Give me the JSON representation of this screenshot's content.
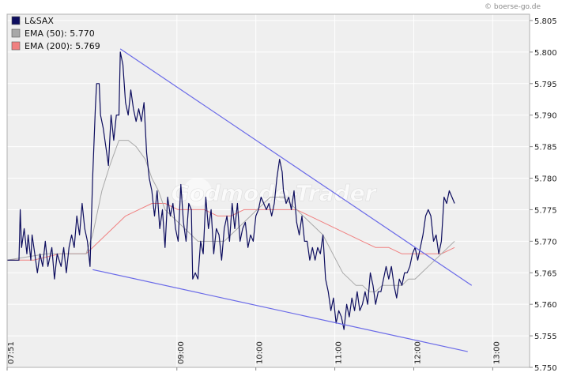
{
  "chart_data": {
    "type": "line",
    "source_label": "© boerse-go.de",
    "watermark": "Godmode-Trader",
    "legend": [
      {
        "name": "L&SAX",
        "color": "#0d0d5e"
      },
      {
        "name": "EMA (50): 5.770",
        "color": "#a8a8a8"
      },
      {
        "name": "EMA (200): 5.769",
        "color": "#f08080"
      }
    ],
    "xticks": [
      {
        "t": 0,
        "label": "07:51"
      },
      {
        "t": 129,
        "label": "09:00"
      },
      {
        "t": 189,
        "label": "10:00"
      },
      {
        "t": 249,
        "label": "11:00"
      },
      {
        "t": 309,
        "label": "12:00"
      },
      {
        "t": 369,
        "label": "13:00"
      }
    ],
    "yticks": [
      "5.805",
      "5.800",
      "5.795",
      "5.790",
      "5.785",
      "5.780",
      "5.775",
      "5.770",
      "5.765",
      "5.760",
      "5.755",
      "5.750"
    ],
    "ylim": [
      5.75,
      5.806
    ],
    "xlim": [
      0,
      397
    ],
    "grid": true,
    "series": [
      {
        "key": "price",
        "color": "#0d0d5e",
        "points": [
          [
            0,
            5.767
          ],
          [
            9,
            5.767
          ],
          [
            10,
            5.775
          ],
          [
            11,
            5.769
          ],
          [
            13,
            5.772
          ],
          [
            15,
            5.768
          ],
          [
            16,
            5.771
          ],
          [
            18,
            5.767
          ],
          [
            19,
            5.771
          ],
          [
            21,
            5.768
          ],
          [
            23,
            5.765
          ],
          [
            25,
            5.768
          ],
          [
            27,
            5.766
          ],
          [
            29,
            5.77
          ],
          [
            31,
            5.766
          ],
          [
            34,
            5.769
          ],
          [
            36,
            5.764
          ],
          [
            38,
            5.768
          ],
          [
            41,
            5.766
          ],
          [
            43,
            5.769
          ],
          [
            45,
            5.765
          ],
          [
            47,
            5.769
          ],
          [
            49,
            5.771
          ],
          [
            51,
            5.769
          ],
          [
            53,
            5.774
          ],
          [
            55,
            5.771
          ],
          [
            57,
            5.776
          ],
          [
            59,
            5.772
          ],
          [
            61,
            5.77
          ],
          [
            63,
            5.766
          ],
          [
            65,
            5.78
          ],
          [
            67,
            5.791
          ],
          [
            68,
            5.795
          ],
          [
            70,
            5.795
          ],
          [
            71,
            5.79
          ],
          [
            73,
            5.788
          ],
          [
            75,
            5.785
          ],
          [
            77,
            5.782
          ],
          [
            79,
            5.79
          ],
          [
            81,
            5.786
          ],
          [
            83,
            5.79
          ],
          [
            85,
            5.79
          ],
          [
            86,
            5.8
          ],
          [
            88,
            5.798
          ],
          [
            90,
            5.792
          ],
          [
            92,
            5.79
          ],
          [
            94,
            5.794
          ],
          [
            96,
            5.791
          ],
          [
            98,
            5.789
          ],
          [
            100,
            5.791
          ],
          [
            102,
            5.789
          ],
          [
            104,
            5.792
          ],
          [
            106,
            5.784
          ],
          [
            108,
            5.78
          ],
          [
            110,
            5.778
          ],
          [
            112,
            5.774
          ],
          [
            114,
            5.778
          ],
          [
            116,
            5.772
          ],
          [
            118,
            5.775
          ],
          [
            120,
            5.769
          ],
          [
            122,
            5.777
          ],
          [
            124,
            5.774
          ],
          [
            126,
            5.776
          ],
          [
            128,
            5.772
          ],
          [
            130,
            5.77
          ],
          [
            132,
            5.779
          ],
          [
            134,
            5.773
          ],
          [
            136,
            5.77
          ],
          [
            138,
            5.776
          ],
          [
            140,
            5.775
          ],
          [
            141,
            5.764
          ],
          [
            143,
            5.765
          ],
          [
            145,
            5.764
          ],
          [
            147,
            5.77
          ],
          [
            149,
            5.768
          ],
          [
            151,
            5.777
          ],
          [
            153,
            5.772
          ],
          [
            155,
            5.775
          ],
          [
            157,
            5.768
          ],
          [
            159,
            5.772
          ],
          [
            161,
            5.771
          ],
          [
            163,
            5.767
          ],
          [
            165,
            5.772
          ],
          [
            167,
            5.774
          ],
          [
            169,
            5.77
          ],
          [
            171,
            5.776
          ],
          [
            173,
            5.772
          ],
          [
            175,
            5.776
          ],
          [
            177,
            5.77
          ],
          [
            179,
            5.772
          ],
          [
            181,
            5.773
          ],
          [
            183,
            5.769
          ],
          [
            185,
            5.771
          ],
          [
            187,
            5.77
          ],
          [
            189,
            5.774
          ],
          [
            191,
            5.775
          ],
          [
            193,
            5.777
          ],
          [
            195,
            5.776
          ],
          [
            197,
            5.775
          ],
          [
            199,
            5.776
          ],
          [
            201,
            5.774
          ],
          [
            203,
            5.776
          ],
          [
            205,
            5.78
          ],
          [
            207,
            5.783
          ],
          [
            209,
            5.781
          ],
          [
            210,
            5.778
          ],
          [
            212,
            5.776
          ],
          [
            214,
            5.777
          ],
          [
            216,
            5.775
          ],
          [
            218,
            5.778
          ],
          [
            220,
            5.773
          ],
          [
            222,
            5.771
          ],
          [
            224,
            5.774
          ],
          [
            226,
            5.77
          ],
          [
            228,
            5.77
          ],
          [
            230,
            5.767
          ],
          [
            232,
            5.769
          ],
          [
            234,
            5.767
          ],
          [
            236,
            5.769
          ],
          [
            238,
            5.768
          ],
          [
            240,
            5.771
          ],
          [
            242,
            5.764
          ],
          [
            244,
            5.762
          ],
          [
            246,
            5.759
          ],
          [
            248,
            5.761
          ],
          [
            250,
            5.757
          ],
          [
            252,
            5.759
          ],
          [
            254,
            5.758
          ],
          [
            256,
            5.756
          ],
          [
            258,
            5.76
          ],
          [
            260,
            5.758
          ],
          [
            262,
            5.761
          ],
          [
            264,
            5.759
          ],
          [
            266,
            5.762
          ],
          [
            268,
            5.759
          ],
          [
            270,
            5.76
          ],
          [
            272,
            5.762
          ],
          [
            274,
            5.76
          ],
          [
            276,
            5.765
          ],
          [
            278,
            5.763
          ],
          [
            280,
            5.76
          ],
          [
            282,
            5.762
          ],
          [
            284,
            5.762
          ],
          [
            286,
            5.764
          ],
          [
            288,
            5.766
          ],
          [
            290,
            5.764
          ],
          [
            292,
            5.766
          ],
          [
            294,
            5.763
          ],
          [
            296,
            5.761
          ],
          [
            298,
            5.764
          ],
          [
            300,
            5.763
          ],
          [
            302,
            5.765
          ],
          [
            304,
            5.765
          ],
          [
            306,
            5.766
          ],
          [
            308,
            5.768
          ],
          [
            310,
            5.769
          ],
          [
            312,
            5.767
          ],
          [
            314,
            5.769
          ],
          [
            316,
            5.771
          ],
          [
            318,
            5.774
          ],
          [
            320,
            5.775
          ],
          [
            322,
            5.774
          ],
          [
            324,
            5.77
          ],
          [
            326,
            5.771
          ],
          [
            328,
            5.768
          ],
          [
            330,
            5.77
          ],
          [
            332,
            5.777
          ],
          [
            334,
            5.776
          ],
          [
            336,
            5.778
          ],
          [
            338,
            5.777
          ],
          [
            340,
            5.776
          ]
        ]
      },
      {
        "key": "ema50",
        "color": "#a8a8a8",
        "points": [
          [
            0,
            5.767
          ],
          [
            30,
            5.768
          ],
          [
            55,
            5.768
          ],
          [
            60,
            5.768
          ],
          [
            65,
            5.771
          ],
          [
            72,
            5.778
          ],
          [
            78,
            5.782
          ],
          [
            85,
            5.786
          ],
          [
            92,
            5.786
          ],
          [
            98,
            5.785
          ],
          [
            105,
            5.783
          ],
          [
            110,
            5.78
          ],
          [
            115,
            5.778
          ],
          [
            120,
            5.775
          ],
          [
            125,
            5.774
          ],
          [
            130,
            5.773
          ],
          [
            135,
            5.772
          ],
          [
            140,
            5.771
          ],
          [
            145,
            5.77
          ],
          [
            150,
            5.77
          ],
          [
            155,
            5.77
          ],
          [
            160,
            5.77
          ],
          [
            165,
            5.77
          ],
          [
            170,
            5.771
          ],
          [
            175,
            5.772
          ],
          [
            180,
            5.773
          ],
          [
            185,
            5.774
          ],
          [
            190,
            5.775
          ],
          [
            195,
            5.776
          ],
          [
            200,
            5.777
          ],
          [
            205,
            5.777
          ],
          [
            210,
            5.777
          ],
          [
            215,
            5.776
          ],
          [
            220,
            5.775
          ],
          [
            225,
            5.774
          ],
          [
            230,
            5.773
          ],
          [
            235,
            5.772
          ],
          [
            240,
            5.771
          ],
          [
            245,
            5.769
          ],
          [
            250,
            5.767
          ],
          [
            255,
            5.765
          ],
          [
            260,
            5.764
          ],
          [
            265,
            5.763
          ],
          [
            270,
            5.763
          ],
          [
            275,
            5.762
          ],
          [
            280,
            5.762
          ],
          [
            285,
            5.763
          ],
          [
            290,
            5.763
          ],
          [
            295,
            5.763
          ],
          [
            300,
            5.763
          ],
          [
            305,
            5.764
          ],
          [
            310,
            5.764
          ],
          [
            315,
            5.765
          ],
          [
            320,
            5.766
          ],
          [
            325,
            5.767
          ],
          [
            330,
            5.768
          ],
          [
            335,
            5.769
          ],
          [
            340,
            5.77
          ]
        ]
      },
      {
        "key": "ema200",
        "color": "#f08080",
        "points": [
          [
            0,
            5.767
          ],
          [
            20,
            5.767
          ],
          [
            40,
            5.768
          ],
          [
            60,
            5.768
          ],
          [
            70,
            5.77
          ],
          [
            80,
            5.772
          ],
          [
            90,
            5.774
          ],
          [
            100,
            5.775
          ],
          [
            110,
            5.776
          ],
          [
            120,
            5.776
          ],
          [
            130,
            5.775
          ],
          [
            140,
            5.775
          ],
          [
            150,
            5.775
          ],
          [
            160,
            5.774
          ],
          [
            170,
            5.774
          ],
          [
            180,
            5.775
          ],
          [
            190,
            5.775
          ],
          [
            200,
            5.775
          ],
          [
            210,
            5.775
          ],
          [
            220,
            5.775
          ],
          [
            230,
            5.774
          ],
          [
            240,
            5.773
          ],
          [
            250,
            5.772
          ],
          [
            260,
            5.771
          ],
          [
            270,
            5.77
          ],
          [
            280,
            5.769
          ],
          [
            290,
            5.769
          ],
          [
            300,
            5.768
          ],
          [
            310,
            5.768
          ],
          [
            320,
            5.768
          ],
          [
            330,
            5.768
          ],
          [
            340,
            5.769
          ]
        ]
      }
    ],
    "trendlines": [
      {
        "color": "#6a6ae8",
        "from": [
          86,
          5.8005
        ],
        "to": [
          353,
          5.763
        ]
      },
      {
        "color": "#6a6ae8",
        "from": [
          65,
          5.7655
        ],
        "to": [
          350,
          5.7525
        ]
      }
    ]
  }
}
